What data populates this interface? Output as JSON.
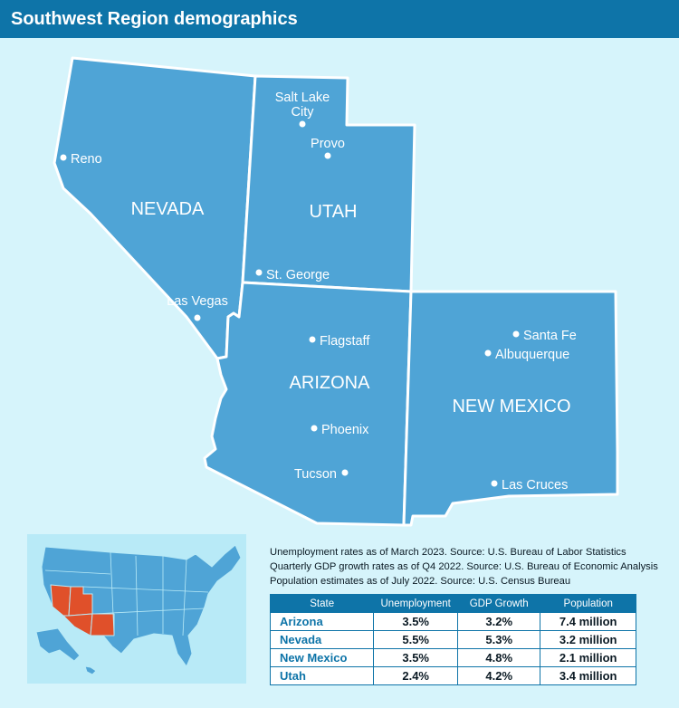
{
  "title": "Southwest Region demographics",
  "colors": {
    "header": "#0e74a8",
    "background": "#d6f4fb",
    "state_fill": "#4fa4d6",
    "border": "#ffffff",
    "highlight": "#e0502a",
    "inset_fill": "#b8eaf7"
  },
  "map": {
    "states": [
      {
        "id": "nevada",
        "label": "NEVADA"
      },
      {
        "id": "utah",
        "label": "UTAH"
      },
      {
        "id": "arizona",
        "label": "ARIZONA"
      },
      {
        "id": "new-mexico",
        "label": "NEW MEXICO"
      }
    ],
    "cities": [
      {
        "id": "reno",
        "label": "Reno"
      },
      {
        "id": "salt-lake-city",
        "label_1": "Salt Lake",
        "label_2": "City"
      },
      {
        "id": "provo",
        "label": "Provo"
      },
      {
        "id": "st-george",
        "label": "St. George"
      },
      {
        "id": "las-vegas",
        "label": "Las Vegas"
      },
      {
        "id": "flagstaff",
        "label": "Flagstaff"
      },
      {
        "id": "phoenix",
        "label": "Phoenix"
      },
      {
        "id": "tucson",
        "label": "Tucson"
      },
      {
        "id": "santa-fe",
        "label": "Santa Fe"
      },
      {
        "id": "albuquerque",
        "label": "Albuquerque"
      },
      {
        "id": "las-cruces",
        "label": "Las Cruces"
      }
    ]
  },
  "notes": [
    "Unemployment rates as of March 2023. Source: U.S. Bureau of Labor Statistics",
    "Quarterly GDP growth rates as of Q4 2022. Source: U.S. Bureau of Economic Analysis",
    "Population estimates as of July 2022. Source: U.S. Census Bureau"
  ],
  "table": {
    "headers": [
      "State",
      "Unemployment",
      "GDP Growth",
      "Population"
    ],
    "rows": [
      {
        "state": "Arizona",
        "unemployment": "3.5%",
        "gdp": "3.2%",
        "population": "7.4 million"
      },
      {
        "state": "Nevada",
        "unemployment": "5.5%",
        "gdp": "5.3%",
        "population": "3.2 million"
      },
      {
        "state": "New Mexico",
        "unemployment": "3.5%",
        "gdp": "4.8%",
        "population": "2.1 million"
      },
      {
        "state": "Utah",
        "unemployment": "2.4%",
        "gdp": "4.2%",
        "population": "3.4 million"
      }
    ]
  }
}
